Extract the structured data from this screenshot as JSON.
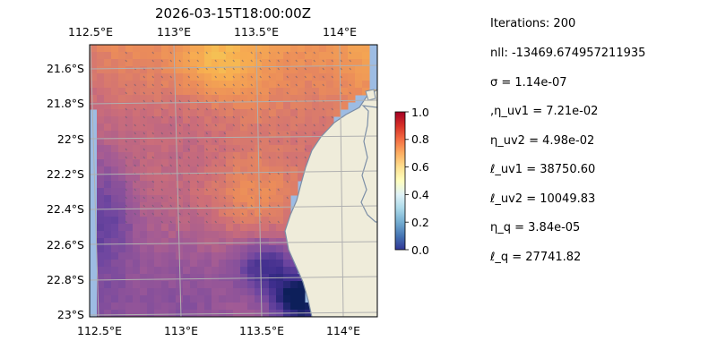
{
  "chart_data": {
    "type": "heatmap",
    "title": "2026-03-15T18:00:00Z",
    "x_ticks": [
      "112.5°E",
      "113°E",
      "113.5°E",
      "114°E"
    ],
    "y_ticks": [
      "21.6°S",
      "21.8°S",
      "22°S",
      "22.2°S",
      "22.4°S",
      "22.6°S",
      "22.8°S",
      "23°S"
    ],
    "x_range": [
      112.5,
      114.2
    ],
    "y_range": [
      -23.0,
      -21.45
    ],
    "grid": true,
    "colormap": "RdYlBu_r",
    "colorbar": {
      "ticks": [
        "0.0",
        "0.2",
        "0.4",
        "0.6",
        "0.8",
        "1.0"
      ],
      "range": [
        0,
        1
      ]
    },
    "colors": {
      "ocean": "#9dbce3",
      "land": "#efecda",
      "coast": "#7c8ea6",
      "grid": "#b0b0b0"
    },
    "values_description": "Gridded field with values ~0.2–0.45 over the western/southern shelf, ~0.5–0.6 mid-shelf, peak ~0.6–0.7 in the north, and low values (~0.0–0.1) near the coast in the south-east; light vector arrows overlay the northern part."
  },
  "stats": {
    "lines": [
      "Iterations: 200",
      "nll: -13469.674957211935",
      "σ = 1.14e-07",
      ",η_uv1 = 7.21e-02",
      "η_uv2 = 4.98e-02",
      "ℓ_uv1 = 38750.60",
      "ℓ_uv2 = 10049.83",
      "η_q = 3.84e-05",
      "ℓ_q = 27741.82"
    ]
  }
}
